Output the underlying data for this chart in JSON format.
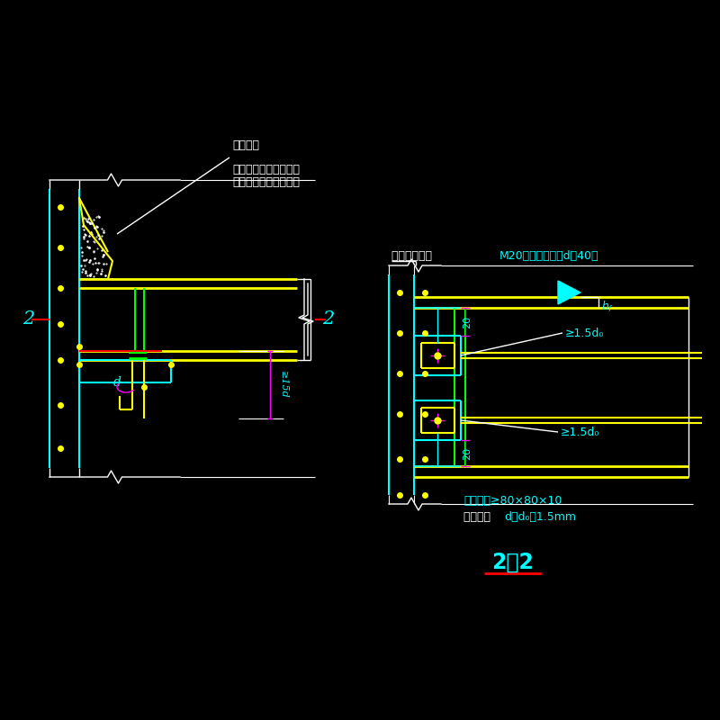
{
  "bg_color": "#000000",
  "white": "#ffffff",
  "yellow": "#ffff00",
  "cyan": "#00ffff",
  "red": "#ff0000",
  "green": "#00ff00",
  "magenta": "#ff00ff",
  "annotation1": "预留凹槽",
  "annotation2_1": "待钢梁安装完毕校正无",
  "annotation2_2": "误后用细石混凝土灌实",
  "annotation3_white": "锚栓不得小于 ",
  "annotation3_cyan": "M20（梁翼缘开孔d＝40）",
  "annotation4": "≥1.5d",
  "annotation6": "垫板尺寸≥80×80×10",
  "annotation7_white": "垫板孔径  ",
  "annotation7_cyan": "d＝d₀＋1.5mm",
  "label_20_1": "20",
  "label_20_2": "20",
  "label_d": "d",
  "label_15d": "≥15d",
  "label_hf": "h",
  "title": "2－2"
}
